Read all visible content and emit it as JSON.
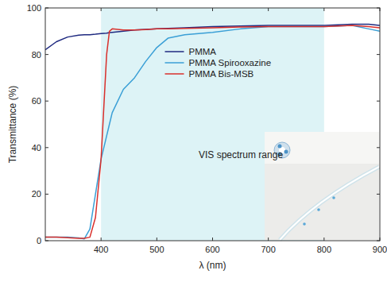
{
  "chart_data": {
    "type": "line",
    "x_label": "λ (nm)",
    "y_label": "Transmittance (%)",
    "x": [
      300,
      320,
      340,
      360,
      370,
      380,
      390,
      400,
      410,
      415,
      420,
      440,
      460,
      480,
      500,
      520,
      550,
      600,
      650,
      700,
      750,
      800,
      850,
      880,
      900
    ],
    "series": [
      {
        "name": "PMMA",
        "color": "#1f2a80",
        "values": [
          82,
          85.5,
          87.5,
          88.3,
          88.5,
          88.5,
          88.7,
          89,
          89.2,
          89.4,
          89.5,
          90,
          90.5,
          90.8,
          91,
          91.2,
          91.5,
          92,
          92.2,
          92.5,
          92.5,
          92.5,
          93,
          93,
          92.5
        ]
      },
      {
        "name": "PMMA Spirooxazine",
        "color": "#3a9fd6",
        "values": [
          1.5,
          1.5,
          1.5,
          1.2,
          0.8,
          5,
          20,
          35,
          45,
          50,
          55,
          65,
          70,
          77,
          83,
          87,
          88.5,
          89.5,
          91,
          92,
          92,
          92,
          92.5,
          91,
          90
        ]
      },
      {
        "name": "PMMA Bis-MSB",
        "color": "#d9302c",
        "values": [
          1.5,
          1.5,
          1.3,
          1,
          1,
          1.5,
          10,
          35,
          80,
          90,
          91,
          90.5,
          90.5,
          90.7,
          91,
          91,
          91.2,
          91.5,
          91.8,
          92,
          92,
          92,
          92.5,
          92,
          91.5
        ]
      }
    ],
    "highlight": {
      "label": "VIS spectrum range",
      "x": [
        400,
        800
      ],
      "color": "#ddf3f6"
    },
    "xlim": [
      300,
      900
    ],
    "xticks": [
      400,
      500,
      600,
      700,
      800,
      900
    ],
    "ylim": [
      0,
      100
    ],
    "yticks": [
      0,
      20,
      40,
      60,
      80,
      100
    ],
    "legend": "upper-center",
    "grid": false
  }
}
